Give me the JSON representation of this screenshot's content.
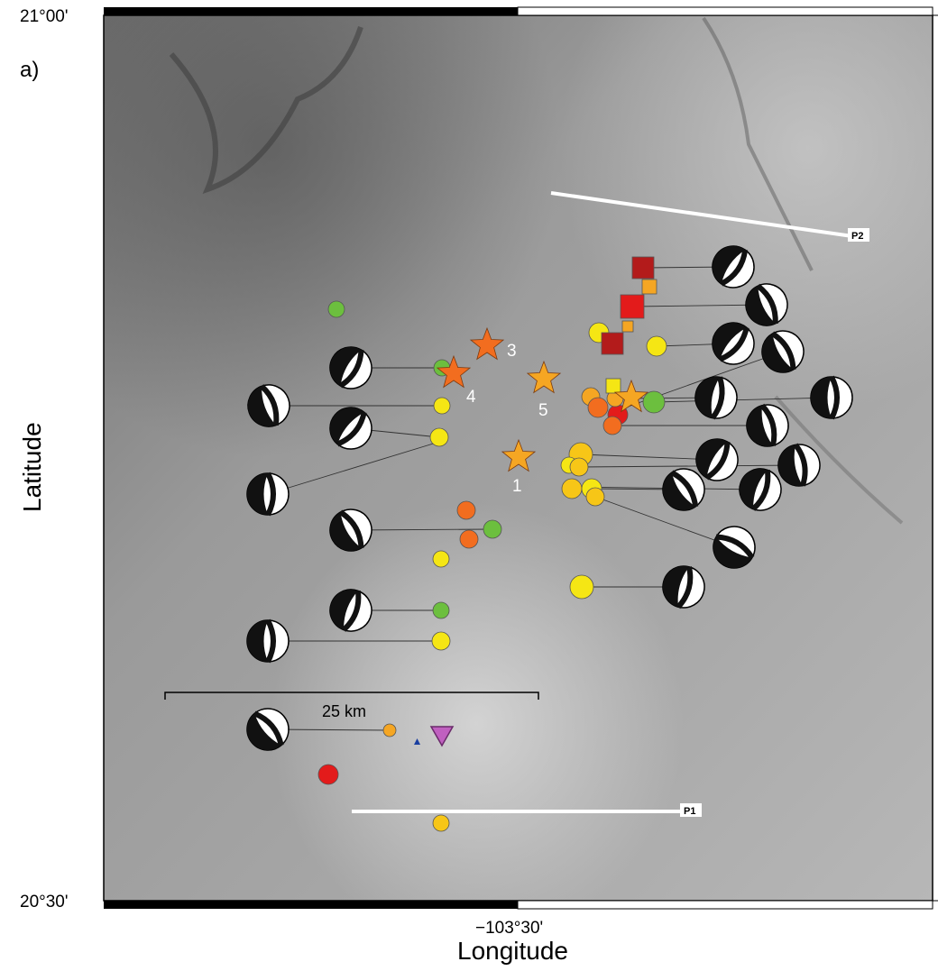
{
  "panel_label": "a)",
  "axes": {
    "ylabel": "Latitude",
    "xlabel": "Longitude",
    "lat_ticks": [
      "21°00'",
      "20°30'"
    ],
    "lon_ticks": [
      "−103°30'"
    ]
  },
  "scale_bar": {
    "label": "25 km"
  },
  "profiles": [
    {
      "label": "P1"
    },
    {
      "label": "P2"
    }
  ],
  "star_labels": [
    "1",
    "3",
    "4",
    "5"
  ],
  "colors": {
    "red": "#e31b1b",
    "dark_red": "#b31b1b",
    "orange": "#f26d1f",
    "light_orange": "#f5a623",
    "amber": "#f7c617",
    "yellow": "#f5e614",
    "green": "#6cbf3e",
    "volcano": "#c060c0",
    "station": "#1a3fa0",
    "profile_line": "#ffffff"
  }
}
